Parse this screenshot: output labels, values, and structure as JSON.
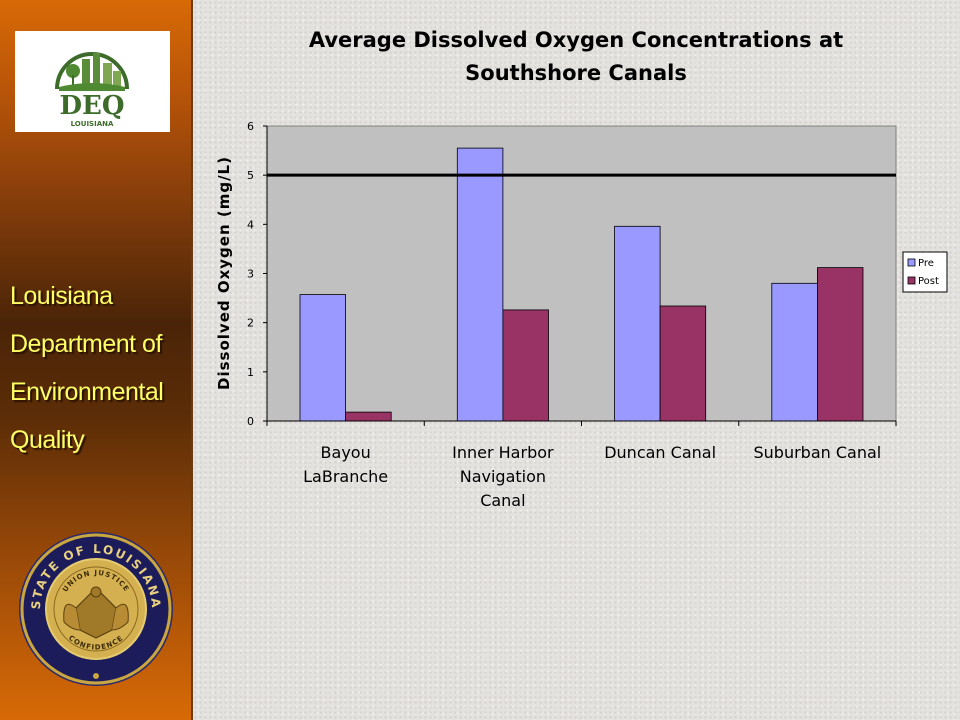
{
  "sidebar": {
    "logo": {
      "text": "DEQ",
      "subtext": "LOUISIANA"
    },
    "org_lines": [
      "Louisiana",
      "Department of",
      "Environmental",
      "Quality"
    ],
    "seal": {
      "top_text": "STATE OF LOUISIANA",
      "motto": "UNION JUSTICE",
      "bottom_text": "CONFIDENCE"
    }
  },
  "colors": {
    "pre": "#9999ff",
    "post": "#993366",
    "plot_bg": "#c0c0c0",
    "accent": "#ffff66"
  },
  "chart_data": {
    "type": "bar",
    "title_lines": [
      "Average Dissolved Oxygen Concentrations at",
      "Southshore Canals"
    ],
    "ylabel": "Dissolved Oxygen (mg/L)",
    "xlabel": "",
    "ylim": [
      0,
      6
    ],
    "yticks": [
      "0",
      "1",
      "2",
      "3",
      "4",
      "5",
      "6"
    ],
    "categories": [
      [
        "Bayou",
        "LaBranche"
      ],
      [
        "Inner Harbor",
        "Navigation",
        "Canal"
      ],
      [
        "Duncan Canal"
      ],
      [
        "Suburban Canal"
      ]
    ],
    "series": [
      {
        "name": "Pre",
        "values": [
          2.57,
          5.55,
          3.96,
          2.8
        ]
      },
      {
        "name": "Post",
        "values": [
          0.18,
          2.26,
          2.34,
          3.12
        ]
      }
    ],
    "reference_line": 5,
    "legend_position": "right",
    "grid": false
  }
}
